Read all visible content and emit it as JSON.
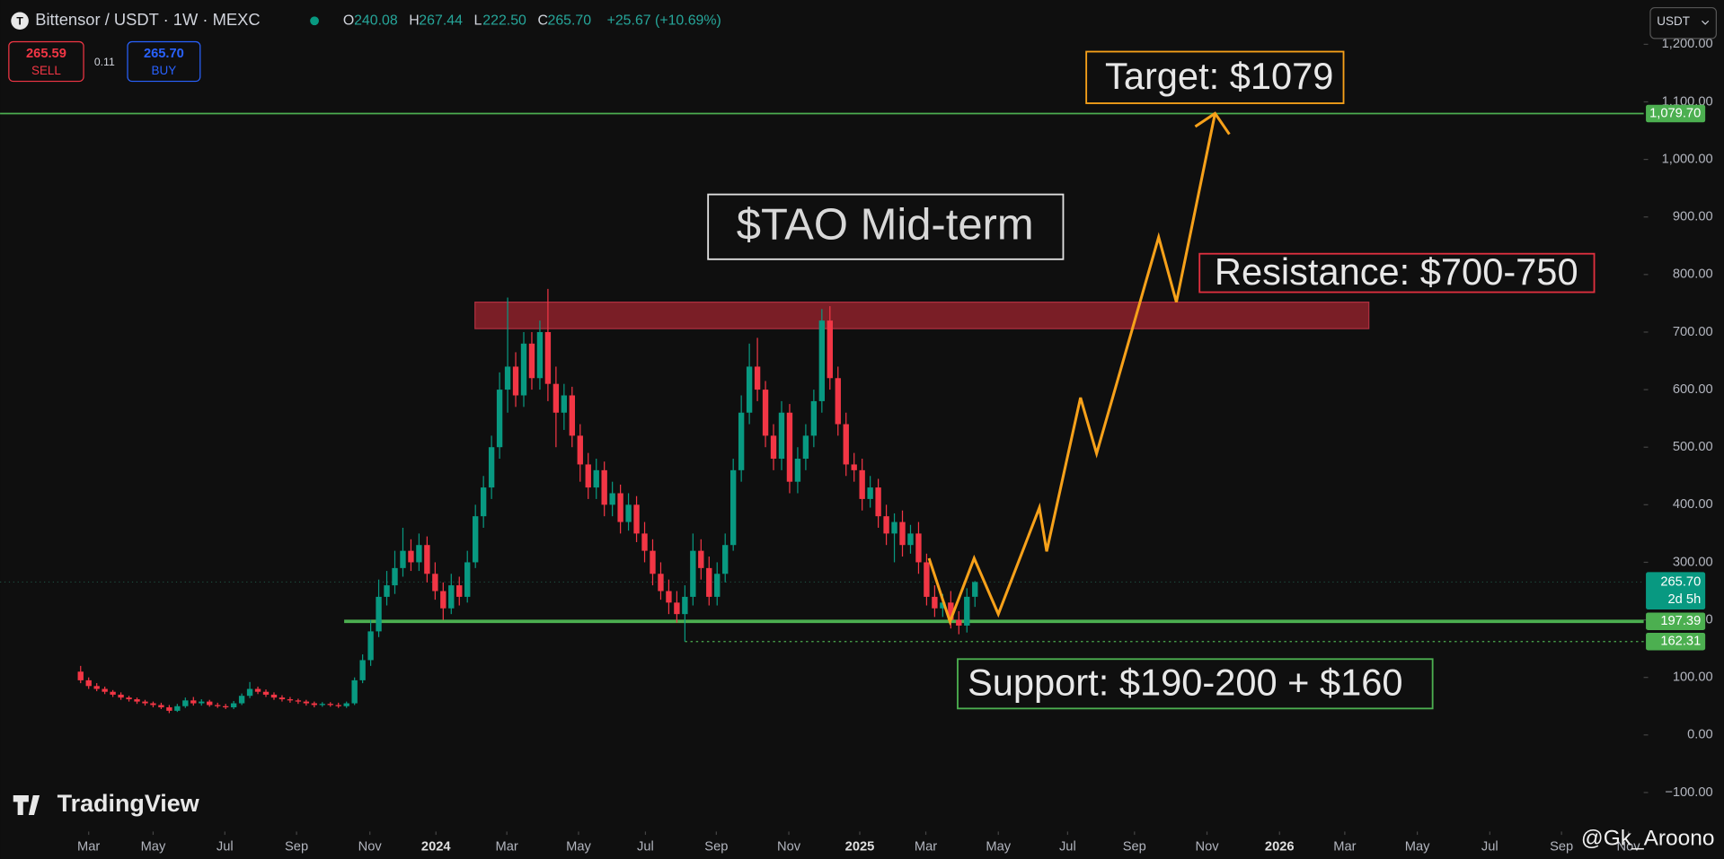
{
  "header": {
    "symbol": "Bittensor / USDT · 1W · MEXC",
    "o_label": "O",
    "o_value": "240.08",
    "h_label": "H",
    "h_value": "267.44",
    "l_label": "L",
    "l_value": "222.50",
    "c_label": "C",
    "c_value": "265.70",
    "change": "+25.67 (+10.69%)",
    "sell_price": "265.59",
    "sell": "SELL",
    "spread": "0.11",
    "buy_price": "265.70",
    "buy": "BUY",
    "currency": "USDT",
    "brand": "TradingView",
    "watermark": "@Gk_Aroono"
  },
  "chart_data": {
    "type": "candlestick",
    "up_color": "#089981",
    "down_color": "#f23645",
    "x": [
      0,
      1,
      2,
      3,
      4,
      5,
      6,
      7,
      8,
      9,
      10,
      11,
      12,
      13,
      14,
      15,
      16,
      17,
      18,
      19,
      20,
      21,
      22,
      23,
      24,
      25,
      26,
      27,
      28,
      29,
      30,
      31,
      32,
      33,
      34,
      35,
      36,
      37,
      38,
      39,
      40,
      41,
      42,
      43,
      44,
      45,
      46,
      47,
      48,
      49,
      50,
      51,
      52,
      53,
      54,
      55,
      56,
      57,
      58,
      59,
      60,
      61,
      62,
      63,
      64,
      65,
      66,
      67,
      68,
      69,
      70,
      71,
      72,
      73,
      74,
      75,
      76,
      77,
      78,
      79,
      80,
      81,
      82,
      83,
      84,
      85,
      86,
      87,
      88,
      89,
      90,
      91,
      92,
      93,
      94,
      95,
      96,
      97,
      98,
      99,
      100,
      101,
      102,
      103,
      104,
      105,
      106,
      107,
      108,
      109,
      110,
      111
    ],
    "open": [
      110,
      95,
      85,
      80,
      75,
      70,
      65,
      62,
      58,
      55,
      52,
      48,
      42,
      50,
      60,
      55,
      58,
      52,
      50,
      48,
      55,
      68,
      80,
      75,
      70,
      65,
      62,
      60,
      58,
      55,
      52,
      54,
      52,
      50,
      55,
      95,
      130,
      180,
      240,
      260,
      290,
      320,
      300,
      330,
      280,
      250,
      220,
      260,
      240,
      300,
      380,
      430,
      500,
      600,
      640,
      590,
      680,
      620,
      700,
      610,
      560,
      590,
      520,
      470,
      430,
      460,
      400,
      420,
      370,
      400,
      350,
      320,
      280,
      250,
      230,
      210,
      240,
      320,
      290,
      240,
      280,
      330,
      460,
      560,
      640,
      600,
      520,
      480,
      560,
      440,
      480,
      520,
      580,
      720,
      620,
      540,
      470,
      460,
      410,
      430,
      380,
      350,
      370,
      330,
      350,
      300,
      240,
      220,
      230,
      200,
      190,
      240.08
    ],
    "high": [
      120,
      100,
      90,
      84,
      78,
      74,
      68,
      65,
      61,
      58,
      56,
      52,
      54,
      65,
      66,
      62,
      61,
      56,
      54,
      59,
      72,
      92,
      84,
      79,
      74,
      69,
      66,
      63,
      61,
      58,
      57,
      57,
      56,
      58,
      100,
      140,
      200,
      270,
      285,
      320,
      360,
      340,
      350,
      345,
      300,
      265,
      280,
      275,
      320,
      400,
      450,
      520,
      630,
      760,
      665,
      700,
      700,
      720,
      775,
      640,
      610,
      605,
      540,
      490,
      480,
      475,
      440,
      435,
      420,
      415,
      370,
      340,
      300,
      270,
      250,
      260,
      350,
      340,
      310,
      300,
      350,
      480,
      590,
      680,
      690,
      615,
      540,
      580,
      575,
      500,
      540,
      600,
      740,
      745,
      640,
      560,
      490,
      480,
      450,
      445,
      400,
      385,
      390,
      365,
      370,
      315,
      260,
      245,
      250,
      215,
      255,
      267.44
    ],
    "low": [
      90,
      80,
      76,
      71,
      66,
      61,
      58,
      54,
      51,
      48,
      45,
      38,
      40,
      47,
      51,
      51,
      49,
      47,
      45,
      45,
      52,
      64,
      71,
      66,
      61,
      58,
      56,
      54,
      51,
      48,
      49,
      49,
      47,
      47,
      52,
      90,
      120,
      170,
      225,
      245,
      275,
      285,
      285,
      265,
      235,
      200,
      210,
      225,
      230,
      290,
      360,
      410,
      480,
      560,
      570,
      570,
      600,
      600,
      580,
      500,
      530,
      500,
      440,
      410,
      410,
      380,
      380,
      350,
      355,
      335,
      300,
      260,
      235,
      210,
      195,
      162.31,
      225,
      270,
      225,
      225,
      265,
      320,
      440,
      540,
      580,
      500,
      460,
      460,
      420,
      420,
      460,
      500,
      560,
      600,
      520,
      450,
      440,
      390,
      395,
      360,
      330,
      300,
      310,
      315,
      280,
      225,
      205,
      205,
      185,
      175,
      178,
      222.5
    ],
    "close": [
      95,
      85,
      80,
      75,
      70,
      65,
      62,
      58,
      55,
      52,
      48,
      42,
      50,
      60,
      55,
      58,
      52,
      50,
      48,
      55,
      68,
      80,
      75,
      70,
      65,
      62,
      60,
      58,
      55,
      52,
      54,
      52,
      50,
      55,
      95,
      130,
      180,
      240,
      260,
      290,
      320,
      300,
      330,
      280,
      250,
      220,
      260,
      240,
      300,
      380,
      430,
      500,
      600,
      640,
      590,
      680,
      620,
      700,
      610,
      560,
      590,
      520,
      470,
      430,
      460,
      400,
      420,
      370,
      400,
      350,
      320,
      280,
      250,
      230,
      210,
      240,
      320,
      290,
      240,
      280,
      330,
      460,
      560,
      640,
      600,
      520,
      480,
      560,
      440,
      480,
      520,
      580,
      720,
      620,
      540,
      470,
      460,
      410,
      430,
      380,
      350,
      370,
      330,
      350,
      300,
      240,
      220,
      230,
      200,
      190,
      240.08,
      265.7
    ],
    "xlim": [
      -10,
      194
    ],
    "xticks": [
      {
        "value": 1.0,
        "label": "Mar"
      },
      {
        "value": 9.0,
        "label": "May"
      },
      {
        "value": 17.9,
        "label": "Jul"
      },
      {
        "value": 26.8,
        "label": "Sep"
      },
      {
        "value": 35.9,
        "label": "Nov"
      },
      {
        "value": 44.1,
        "label": "2024"
      },
      {
        "value": 52.9,
        "label": "Mar"
      },
      {
        "value": 61.8,
        "label": "May"
      },
      {
        "value": 70.1,
        "label": "Jul"
      },
      {
        "value": 78.9,
        "label": "Sep"
      },
      {
        "value": 87.9,
        "label": "Nov"
      },
      {
        "value": 96.7,
        "label": "2025"
      },
      {
        "value": 104.9,
        "label": "Mar"
      },
      {
        "value": 113.9,
        "label": "May"
      },
      {
        "value": 122.5,
        "label": "Jul"
      },
      {
        "value": 130.8,
        "label": "Sep"
      },
      {
        "value": 139.8,
        "label": "Nov"
      },
      {
        "value": 148.8,
        "label": "2026"
      },
      {
        "value": 156.9,
        "label": "Mar"
      },
      {
        "value": 165.9,
        "label": "May"
      },
      {
        "value": 174.9,
        "label": "Jul"
      },
      {
        "value": 183.8,
        "label": "Sep"
      },
      {
        "value": 192.1,
        "label": "Nov"
      }
    ],
    "ylim": [
      -164,
      1277
    ],
    "yticks": [
      {
        "value": -100,
        "label": "−100.00"
      },
      {
        "value": 0,
        "label": "0.00"
      },
      {
        "value": 100,
        "label": "100.00"
      },
      {
        "value": 200,
        "label": "200.00"
      },
      {
        "value": 300,
        "label": "300.00"
      },
      {
        "value": 400,
        "label": "400.00"
      },
      {
        "value": 500,
        "label": "500.00"
      },
      {
        "value": 600,
        "label": "600.00"
      },
      {
        "value": 700,
        "label": "700.00"
      },
      {
        "value": 800,
        "label": "800.00"
      },
      {
        "value": 900,
        "label": "900.00"
      },
      {
        "value": 1000,
        "label": "1,000.00"
      },
      {
        "value": 1100,
        "label": "1,100.00"
      },
      {
        "value": 1200,
        "label": "1,200.00"
      }
    ],
    "price_lines": [
      {
        "value": 1079.7,
        "label": "1,079.70",
        "color": "#4caf50"
      },
      {
        "value": 197.39,
        "label": "197.39",
        "color": "#4caf50"
      },
      {
        "value": 162.31,
        "label": "162.31",
        "color": "#4caf50"
      },
      {
        "value": 265.7,
        "label": "265.70",
        "sublabel": "2d 5h",
        "color": "#089981"
      }
    ],
    "resistance_zone": [
      706,
      752
    ],
    "projection": {
      "color": "#f7a11a",
      "x": [
        105.3,
        107.9,
        110.9,
        113.9,
        119.0,
        119.9,
        124.1,
        126.1,
        133.8,
        136.0,
        140.8
      ],
      "values": [
        307,
        197,
        307,
        210,
        395,
        319,
        586,
        489,
        865,
        752,
        1080
      ]
    },
    "annotations": {
      "title": "$TAO Mid-term",
      "target": "Target: $1079",
      "resistance": "Resistance: $700-750",
      "support": "Support: $190-200 + $160"
    }
  }
}
